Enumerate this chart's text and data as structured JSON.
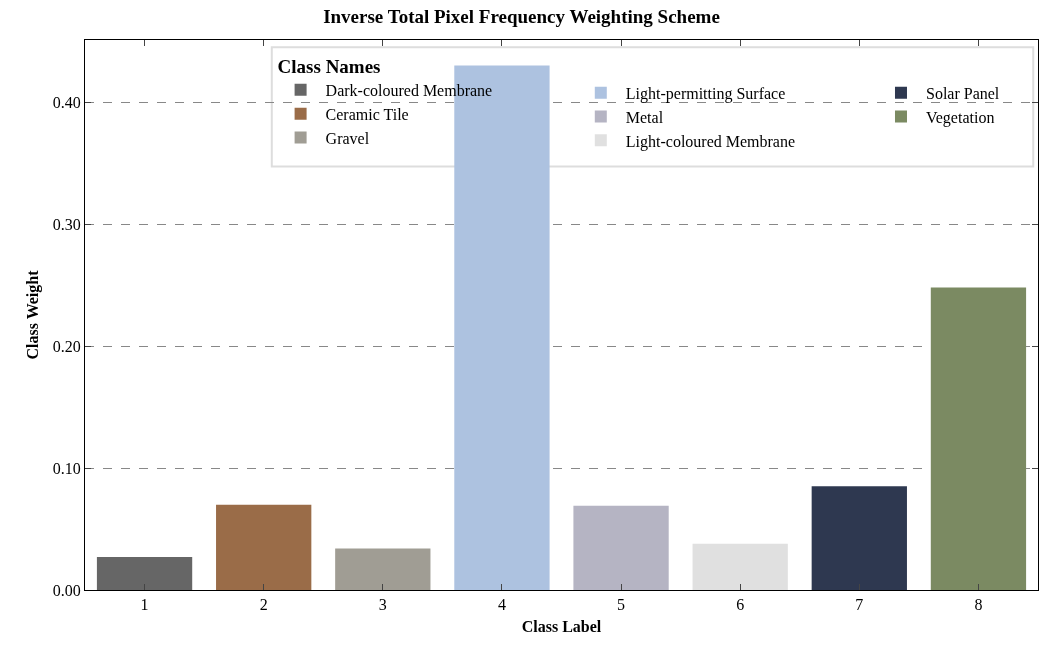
{
  "chart_data": {
    "type": "bar",
    "title": "Inverse Total Pixel Frequency Weighting Scheme",
    "xlabel": "Class Label",
    "ylabel": "Class Weight",
    "legend_title": "Class Names",
    "categories": [
      "1",
      "2",
      "3",
      "4",
      "5",
      "6",
      "7",
      "8"
    ],
    "series": [
      {
        "name": "Dark-coloured Membrane",
        "color": "#666666",
        "values": [
          0.027,
          null,
          null,
          null,
          null,
          null,
          null,
          null
        ]
      },
      {
        "name": "Ceramic Tile",
        "color": "#9a6c48",
        "values": [
          null,
          0.07,
          null,
          null,
          null,
          null,
          null,
          null
        ]
      },
      {
        "name": "Gravel",
        "color": "#a09d94",
        "values": [
          null,
          null,
          0.034,
          null,
          null,
          null,
          null,
          null
        ]
      },
      {
        "name": "Light-permitting Surface",
        "color": "#adc2e0",
        "values": [
          null,
          null,
          null,
          0.43,
          null,
          null,
          null,
          null
        ]
      },
      {
        "name": "Metal",
        "color": "#b5b4c3",
        "values": [
          null,
          null,
          null,
          null,
          0.069,
          null,
          null,
          null
        ]
      },
      {
        "name": "Light-coloured Membrane",
        "color": "#e0e0e0",
        "values": [
          null,
          null,
          null,
          null,
          null,
          0.038,
          null,
          null
        ]
      },
      {
        "name": "Solar Panel",
        "color": "#2e3850",
        "values": [
          null,
          null,
          null,
          null,
          null,
          null,
          0.085,
          null
        ]
      },
      {
        "name": "Vegetation",
        "color": "#7b8a62",
        "values": [
          null,
          null,
          null,
          null,
          null,
          null,
          null,
          0.248
        ]
      }
    ],
    "ylim": [
      0,
      0.451
    ],
    "yticks": [
      {
        "value": 0,
        "label": "0.00"
      },
      {
        "value": 0.1,
        "label": "0.10"
      },
      {
        "value": 0.2,
        "label": "0.20"
      },
      {
        "value": 0.3,
        "label": "0.30"
      },
      {
        "value": 0.4,
        "label": "0.40"
      }
    ],
    "grid": "y",
    "legend": "top right"
  }
}
